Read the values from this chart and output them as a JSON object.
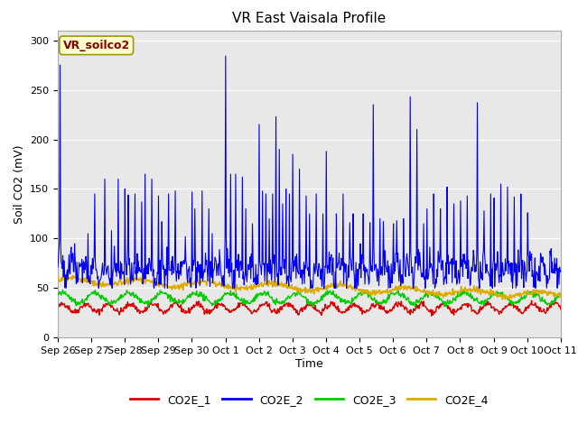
{
  "title": "VR East Vaisala Profile",
  "xlabel": "Time",
  "ylabel": "Soil CO2 (mV)",
  "annotation": "VR_soilco2",
  "xlim_days": [
    0,
    15.0
  ],
  "ylim": [
    0,
    310
  ],
  "yticks": [
    0,
    50,
    100,
    150,
    200,
    250,
    300
  ],
  "xtick_labels": [
    "Sep 26",
    "Sep 27",
    "Sep 28",
    "Sep 29",
    "Sep 30",
    "Oct 1",
    "Oct 2",
    "Oct 3",
    "Oct 4",
    "Oct 5",
    "Oct 6",
    "Oct 7",
    "Oct 8",
    "Oct 9",
    "Oct 10",
    "Oct 11"
  ],
  "xtick_positions": [
    0,
    1,
    2,
    3,
    4,
    5,
    6,
    7,
    8,
    9,
    10,
    11,
    12,
    13,
    14,
    15
  ],
  "colors": {
    "CO2E_1": "#dd0000",
    "CO2E_2": "#0000ee",
    "CO2E_3": "#00cc00",
    "CO2E_4": "#ddaa00"
  },
  "bg_color": "#e8e8e8",
  "title_fontsize": 11,
  "axis_label_fontsize": 9,
  "tick_fontsize": 8,
  "legend_fontsize": 9
}
